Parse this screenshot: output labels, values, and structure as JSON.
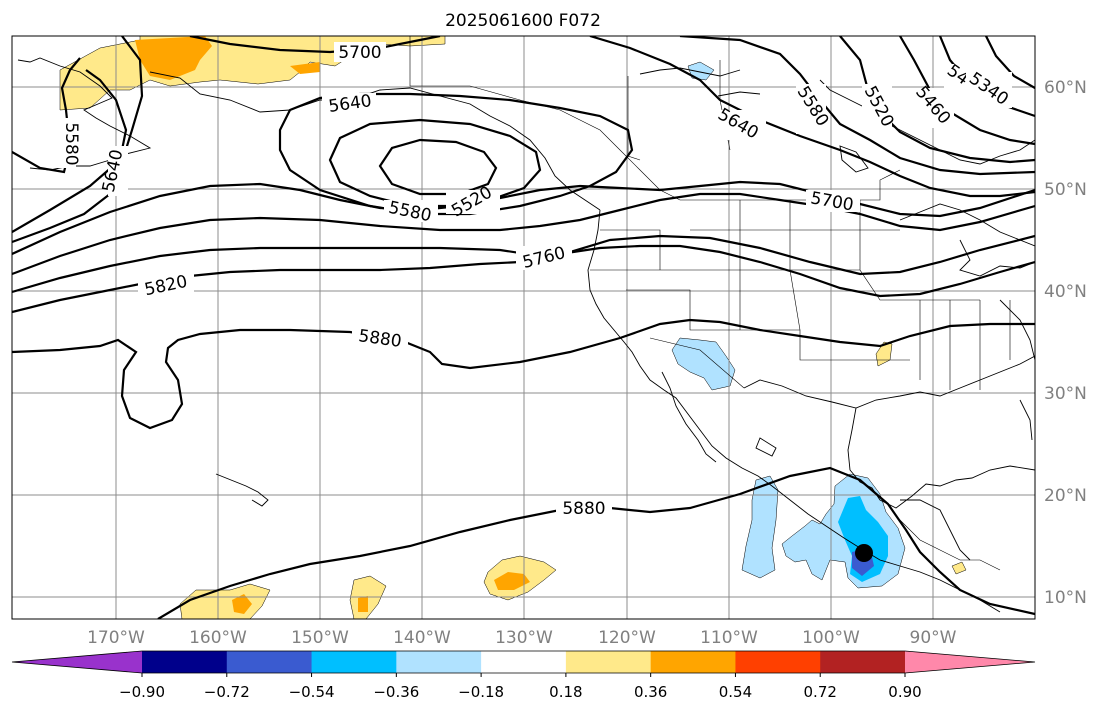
{
  "title": "2025061600 F072",
  "lon_labels": [
    "170°W",
    "160°W",
    "150°W",
    "140°W",
    "130°W",
    "120°W",
    "110°W",
    "100°W",
    "90°W"
  ],
  "lat_labels": [
    "60°N",
    "50°N",
    "40°N",
    "30°N",
    "20°N",
    "10°N"
  ],
  "contour_labels": [
    "5700",
    "5640",
    "5580",
    "5640",
    "5580",
    "5520",
    "5640",
    "5580",
    "5520",
    "5460",
    "5400",
    "5340",
    "5700",
    "5760",
    "5820",
    "5880",
    "5880"
  ],
  "colorbar": {
    "tick_labels": [
      "−0.90",
      "−0.72",
      "−0.54",
      "−0.36",
      "−0.18",
      "0.18",
      "0.36",
      "0.54",
      "0.72",
      "0.90"
    ],
    "colors": [
      "#9932cc",
      "#00008b",
      "#3a5bd0",
      "#00bfff",
      "#b0e2ff",
      "#ffffff",
      "#ffe98a",
      "#ffa500",
      "#ff4000",
      "#b22222",
      "#ff88aa"
    ]
  },
  "storm_marker": "filled black circle"
}
